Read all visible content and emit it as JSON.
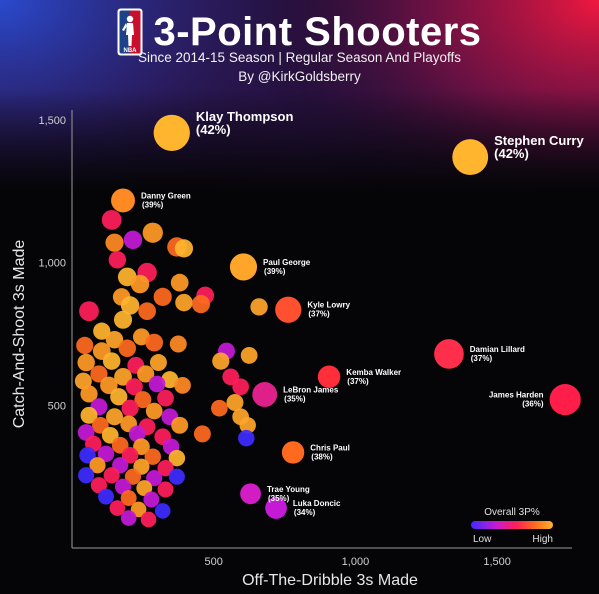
{
  "header": {
    "title": "3-Point Shooters",
    "subtitle": "Since 2014-15 Season | Regular Season And Playoffs",
    "byline": "By @KirkGoldsberry",
    "logo_text": "NBA",
    "logo_colors": {
      "blue": "#1d428a",
      "red": "#c8102e"
    }
  },
  "colors": {
    "low": "#3d2bff",
    "mid_1": "#c41ad6",
    "mid_2": "#ff1e5a",
    "mid_3": "#ff6a1f",
    "high": "#ffb52e"
  },
  "chart_data": {
    "type": "scatter",
    "xlabel": "Off-The-Dribble 3s Made",
    "ylabel": "Catch-And-Shoot 3s Made",
    "xlim": [
      0,
      1750
    ],
    "ylim": [
      0,
      1500
    ],
    "x_ticks": [
      500,
      1000,
      1500
    ],
    "x_tick_labels": [
      "500",
      "1,000",
      "1,500"
    ],
    "y_ticks": [
      500,
      1000,
      1500
    ],
    "y_tick_labels": [
      "500",
      "1,000",
      "1,500"
    ],
    "grid": false,
    "legend": {
      "title": "Overall 3P%",
      "low_label": "Low",
      "high_label": "High",
      "placement": "bottom-right"
    },
    "labeled_points": [
      {
        "name": "Klay Thompson",
        "pct": "(42%)",
        "x": 352,
        "y": 1455,
        "size": 3020,
        "color": "#ffb52e",
        "big": true
      },
      {
        "name": "Stephen Curry",
        "pct": "(42%)",
        "x": 1405,
        "y": 1370,
        "size": 2950,
        "color": "#ffb52e",
        "big": true
      },
      {
        "name": "Danny Green",
        "pct": "(39%)",
        "x": 180,
        "y": 1218,
        "size": 1315,
        "color": "#ff8a24"
      },
      {
        "name": "Paul George",
        "pct": "(39%)",
        "x": 605,
        "y": 985,
        "size": 1690,
        "color": "#ffa52a"
      },
      {
        "name": "Kyle Lowry",
        "pct": "(37%)",
        "x": 763,
        "y": 835,
        "size": 1580,
        "color": "#ff5030"
      },
      {
        "name": "Damian Lillard",
        "pct": "(37%)",
        "x": 1330,
        "y": 680,
        "size": 2015,
        "color": "#ff2e4a"
      },
      {
        "name": "Kemba Walker",
        "pct": "(37%)",
        "x": 907,
        "y": 600,
        "size": 1160,
        "color": "#ff2e3a"
      },
      {
        "name": "James Harden",
        "pct": "(36%)",
        "x": 1740,
        "y": 520,
        "size": 2235,
        "color": "#ff1e4a"
      },
      {
        "name": "LeBron James",
        "pct": "(35%)",
        "x": 680,
        "y": 538,
        "size": 1420,
        "color": "#e0208a"
      },
      {
        "name": "Chris Paul",
        "pct": "(38%)",
        "x": 780,
        "y": 335,
        "size": 1155,
        "color": "#ff6a1f"
      },
      {
        "name": "Trae Young",
        "pct": "(35%)",
        "x": 630,
        "y": 190,
        "size": 995,
        "color": "#d21cc4"
      },
      {
        "name": "Luka Doncic",
        "pct": "(34%)",
        "x": 720,
        "y": 140,
        "size": 1080,
        "color": "#c41ad6"
      }
    ],
    "other_points": [
      {
        "x": 140,
        "y": 1150,
        "size": 900,
        "color": "#ff1e5a"
      },
      {
        "x": 285,
        "y": 1105,
        "size": 940,
        "color": "#ff9a26"
      },
      {
        "x": 150,
        "y": 1070,
        "size": 760,
        "color": "#ff8a24"
      },
      {
        "x": 215,
        "y": 1080,
        "size": 780,
        "color": "#c41ad6"
      },
      {
        "x": 370,
        "y": 1055,
        "size": 860,
        "color": "#ff6a1f"
      },
      {
        "x": 395,
        "y": 1050,
        "size": 760,
        "color": "#ffb52e"
      },
      {
        "x": 160,
        "y": 1010,
        "size": 700,
        "color": "#ff1e5a"
      },
      {
        "x": 265,
        "y": 965,
        "size": 870,
        "color": "#ff1e5a"
      },
      {
        "x": 195,
        "y": 950,
        "size": 800,
        "color": "#ffb52e"
      },
      {
        "x": 240,
        "y": 925,
        "size": 780,
        "color": "#ff9a26"
      },
      {
        "x": 380,
        "y": 930,
        "size": 720,
        "color": "#ff9a26"
      },
      {
        "x": 320,
        "y": 880,
        "size": 760,
        "color": "#ff6a1f"
      },
      {
        "x": 470,
        "y": 885,
        "size": 720,
        "color": "#ff1e5a"
      },
      {
        "x": 395,
        "y": 860,
        "size": 700,
        "color": "#ffa52a"
      },
      {
        "x": 455,
        "y": 855,
        "size": 760,
        "color": "#ff6a1f"
      },
      {
        "x": 175,
        "y": 880,
        "size": 700,
        "color": "#ff9a26"
      },
      {
        "x": 205,
        "y": 850,
        "size": 780,
        "color": "#ffb52e"
      },
      {
        "x": 60,
        "y": 830,
        "size": 900,
        "color": "#ff1e5a"
      },
      {
        "x": 180,
        "y": 800,
        "size": 750,
        "color": "#ffb52e"
      },
      {
        "x": 265,
        "y": 830,
        "size": 720,
        "color": "#ff6a1f"
      },
      {
        "x": 660,
        "y": 845,
        "size": 690,
        "color": "#ffa52a"
      },
      {
        "x": 105,
        "y": 760,
        "size": 680,
        "color": "#ffb52e"
      },
      {
        "x": 150,
        "y": 730,
        "size": 700,
        "color": "#ffa52a"
      },
      {
        "x": 245,
        "y": 740,
        "size": 660,
        "color": "#ff9a26"
      },
      {
        "x": 290,
        "y": 720,
        "size": 720,
        "color": "#ff6a1f"
      },
      {
        "x": 375,
        "y": 715,
        "size": 660,
        "color": "#ff8a24"
      },
      {
        "x": 45,
        "y": 710,
        "size": 680,
        "color": "#ff6a1f"
      },
      {
        "x": 105,
        "y": 690,
        "size": 720,
        "color": "#ff9a26"
      },
      {
        "x": 195,
        "y": 700,
        "size": 700,
        "color": "#ff6a1f"
      },
      {
        "x": 545,
        "y": 690,
        "size": 660,
        "color": "#c41ad6"
      },
      {
        "x": 625,
        "y": 675,
        "size": 650,
        "color": "#ffa52a"
      },
      {
        "x": 50,
        "y": 650,
        "size": 700,
        "color": "#ff9a26"
      },
      {
        "x": 140,
        "y": 655,
        "size": 700,
        "color": "#ffb52e"
      },
      {
        "x": 225,
        "y": 640,
        "size": 660,
        "color": "#ff1e5a"
      },
      {
        "x": 305,
        "y": 650,
        "size": 660,
        "color": "#ffa52a"
      },
      {
        "x": 525,
        "y": 655,
        "size": 680,
        "color": "#ffa52a"
      },
      {
        "x": 95,
        "y": 610,
        "size": 680,
        "color": "#ff6a1f"
      },
      {
        "x": 180,
        "y": 600,
        "size": 720,
        "color": "#ffa52a"
      },
      {
        "x": 260,
        "y": 610,
        "size": 680,
        "color": "#ff9a26"
      },
      {
        "x": 345,
        "y": 590,
        "size": 660,
        "color": "#ffb52e"
      },
      {
        "x": 560,
        "y": 600,
        "size": 640,
        "color": "#ff1e5a"
      },
      {
        "x": 40,
        "y": 585,
        "size": 660,
        "color": "#ffa52a"
      },
      {
        "x": 130,
        "y": 570,
        "size": 700,
        "color": "#ff9a26"
      },
      {
        "x": 220,
        "y": 565,
        "size": 660,
        "color": "#ff1e5a"
      },
      {
        "x": 300,
        "y": 575,
        "size": 640,
        "color": "#c41ad6"
      },
      {
        "x": 390,
        "y": 570,
        "size": 640,
        "color": "#ff8a24"
      },
      {
        "x": 595,
        "y": 565,
        "size": 640,
        "color": "#ff1e5a"
      },
      {
        "x": 60,
        "y": 540,
        "size": 680,
        "color": "#ff9a26"
      },
      {
        "x": 165,
        "y": 530,
        "size": 680,
        "color": "#ffb52e"
      },
      {
        "x": 250,
        "y": 520,
        "size": 660,
        "color": "#ff6a1f"
      },
      {
        "x": 330,
        "y": 525,
        "size": 640,
        "color": "#ff1e5a"
      },
      {
        "x": 575,
        "y": 510,
        "size": 660,
        "color": "#ffa52a"
      },
      {
        "x": 95,
        "y": 495,
        "size": 660,
        "color": "#c41ad6"
      },
      {
        "x": 205,
        "y": 490,
        "size": 680,
        "color": "#ff1e5a"
      },
      {
        "x": 290,
        "y": 480,
        "size": 640,
        "color": "#ff9a26"
      },
      {
        "x": 520,
        "y": 490,
        "size": 640,
        "color": "#ff6a1f"
      },
      {
        "x": 60,
        "y": 465,
        "size": 660,
        "color": "#ffb52e"
      },
      {
        "x": 150,
        "y": 460,
        "size": 660,
        "color": "#ffa52a"
      },
      {
        "x": 345,
        "y": 460,
        "size": 640,
        "color": "#c41ad6"
      },
      {
        "x": 595,
        "y": 460,
        "size": 640,
        "color": "#ffa52a"
      },
      {
        "x": 100,
        "y": 430,
        "size": 640,
        "color": "#ff6a1f"
      },
      {
        "x": 200,
        "y": 435,
        "size": 640,
        "color": "#ff9a26"
      },
      {
        "x": 265,
        "y": 425,
        "size": 640,
        "color": "#ff1e5a"
      },
      {
        "x": 380,
        "y": 430,
        "size": 660,
        "color": "#ff9a26"
      },
      {
        "x": 620,
        "y": 430,
        "size": 620,
        "color": "#ffa52a"
      },
      {
        "x": 50,
        "y": 405,
        "size": 640,
        "color": "#c41ad6"
      },
      {
        "x": 135,
        "y": 395,
        "size": 640,
        "color": "#ffb52e"
      },
      {
        "x": 230,
        "y": 400,
        "size": 640,
        "color": "#c41ad6"
      },
      {
        "x": 320,
        "y": 390,
        "size": 640,
        "color": "#ff1e5a"
      },
      {
        "x": 460,
        "y": 400,
        "size": 660,
        "color": "#ff6a1f"
      },
      {
        "x": 75,
        "y": 365,
        "size": 620,
        "color": "#ff1e5a"
      },
      {
        "x": 170,
        "y": 360,
        "size": 640,
        "color": "#ff6a1f"
      },
      {
        "x": 245,
        "y": 355,
        "size": 640,
        "color": "#ff9a26"
      },
      {
        "x": 350,
        "y": 355,
        "size": 620,
        "color": "#c41ad6"
      },
      {
        "x": 615,
        "y": 385,
        "size": 620,
        "color": "#3d2bff"
      },
      {
        "x": 55,
        "y": 325,
        "size": 620,
        "color": "#3d2bff"
      },
      {
        "x": 120,
        "y": 330,
        "size": 620,
        "color": "#c41ad6"
      },
      {
        "x": 205,
        "y": 325,
        "size": 620,
        "color": "#ff1e5a"
      },
      {
        "x": 285,
        "y": 320,
        "size": 620,
        "color": "#ff6a1f"
      },
      {
        "x": 370,
        "y": 315,
        "size": 620,
        "color": "#ffb52e"
      },
      {
        "x": 90,
        "y": 290,
        "size": 600,
        "color": "#ff9a26"
      },
      {
        "x": 170,
        "y": 290,
        "size": 600,
        "color": "#c41ad6"
      },
      {
        "x": 245,
        "y": 285,
        "size": 600,
        "color": "#ffa52a"
      },
      {
        "x": 330,
        "y": 280,
        "size": 600,
        "color": "#ff1e5a"
      },
      {
        "x": 50,
        "y": 255,
        "size": 600,
        "color": "#3d2bff"
      },
      {
        "x": 140,
        "y": 255,
        "size": 600,
        "color": "#ff1e5a"
      },
      {
        "x": 215,
        "y": 250,
        "size": 600,
        "color": "#ff6a1f"
      },
      {
        "x": 290,
        "y": 245,
        "size": 600,
        "color": "#c41ad6"
      },
      {
        "x": 370,
        "y": 250,
        "size": 600,
        "color": "#3d2bff"
      },
      {
        "x": 95,
        "y": 220,
        "size": 600,
        "color": "#ff1e5a"
      },
      {
        "x": 180,
        "y": 215,
        "size": 600,
        "color": "#c41ad6"
      },
      {
        "x": 255,
        "y": 210,
        "size": 580,
        "color": "#ffa52a"
      },
      {
        "x": 330,
        "y": 205,
        "size": 580,
        "color": "#ff1e5a"
      },
      {
        "x": 120,
        "y": 180,
        "size": 580,
        "color": "#3d2bff"
      },
      {
        "x": 200,
        "y": 175,
        "size": 580,
        "color": "#ff6a1f"
      },
      {
        "x": 280,
        "y": 170,
        "size": 580,
        "color": "#c41ad6"
      },
      {
        "x": 160,
        "y": 140,
        "size": 560,
        "color": "#ff1e5a"
      },
      {
        "x": 235,
        "y": 135,
        "size": 560,
        "color": "#ff9a26"
      },
      {
        "x": 320,
        "y": 130,
        "size": 560,
        "color": "#3d2bff"
      },
      {
        "x": 200,
        "y": 105,
        "size": 560,
        "color": "#c41ad6"
      },
      {
        "x": 270,
        "y": 100,
        "size": 560,
        "color": "#ff1e5a"
      }
    ]
  }
}
